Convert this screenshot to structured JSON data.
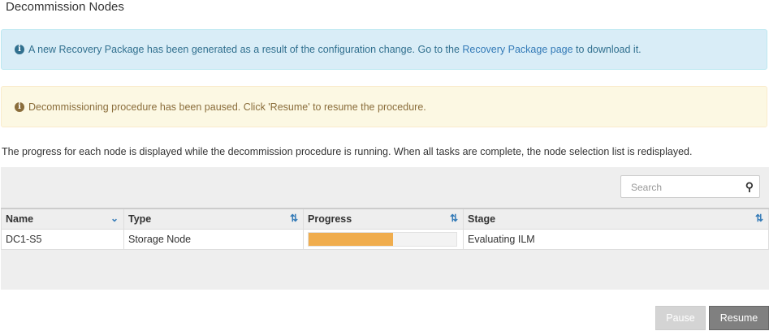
{
  "page": {
    "title": "Decommission Nodes",
    "description": "The progress for each node is displayed while the decommission procedure is running. When all tasks are complete, the node selection list is redisplayed."
  },
  "alerts": {
    "info": {
      "icon": "info-circle-icon",
      "before": "A new Recovery Package has been generated as a result of the configuration change. Go to the ",
      "link": "Recovery Package page",
      "after": " to download it."
    },
    "warning": {
      "icon": "info-circle-icon",
      "text": "Decommissioning procedure has been paused. Click 'Resume' to resume the procedure."
    }
  },
  "search": {
    "placeholder": "Search"
  },
  "table": {
    "columns": [
      "Name",
      "Type",
      "Progress",
      "Stage"
    ],
    "rows": [
      {
        "name": "DC1-S5",
        "type": "Storage Node",
        "progress_percent": 57,
        "stage": "Evaluating ILM"
      }
    ]
  },
  "buttons": {
    "pause": "Pause",
    "resume": "Resume"
  },
  "colors": {
    "progress": "#f0ad4e",
    "info_bg": "#d9edf7",
    "warning_bg": "#fcf8e3"
  }
}
